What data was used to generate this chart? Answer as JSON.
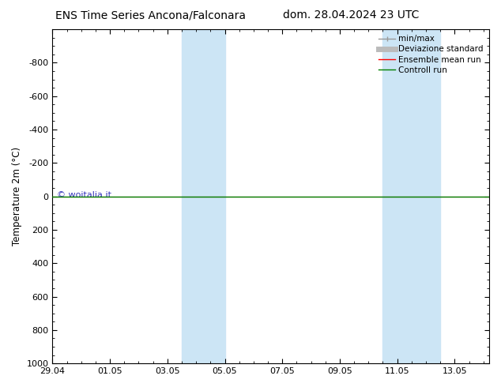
{
  "title_left": "ENS Time Series Ancona/Falconara",
  "title_right": "dom. 28.04.2024 23 UTC",
  "ylabel": "Temperature 2m (°C)",
  "watermark": "© woitalia.it",
  "ylim": [
    -1000,
    1000
  ],
  "yticks": [
    -800,
    -600,
    -400,
    -200,
    0,
    200,
    400,
    600,
    800,
    1000
  ],
  "xtick_labels": [
    "29.04",
    "01.05",
    "03.05",
    "05.05",
    "07.05",
    "09.05",
    "11.05",
    "13.05"
  ],
  "xtick_positions": [
    0,
    2,
    4,
    6,
    8,
    10,
    12,
    14
  ],
  "xlim": [
    0,
    15.2
  ],
  "blue_bands": [
    {
      "xmin": 4.5,
      "xmax": 6.0
    },
    {
      "xmin": 11.5,
      "xmax": 13.5
    }
  ],
  "ensemble_color": "#ff0000",
  "control_color": "#008000",
  "band_color": "#cce5f5",
  "legend_entries": [
    "min/max",
    "Deviazione standard",
    "Ensemble mean run",
    "Controll run"
  ],
  "legend_line_colors": [
    "#999999",
    "#bbbbbb",
    "#ff0000",
    "#008000"
  ],
  "title_fontsize": 10,
  "axis_fontsize": 8.5,
  "tick_fontsize": 8,
  "legend_fontsize": 7.5,
  "watermark_color": "#3333bb",
  "watermark_fontsize": 8,
  "background_color": "#ffffff"
}
